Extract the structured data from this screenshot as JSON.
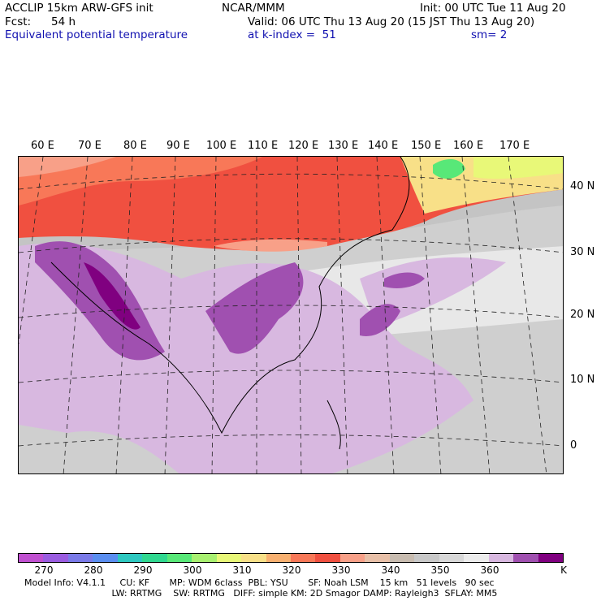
{
  "header": {
    "model": "ACCLIP 15km ARW-GFS init",
    "org": "NCAR/MMM",
    "init": "Init: 00 UTC Tue 11 Aug 20",
    "fcst_label": "Fcst:",
    "fcst_value": "54 h",
    "valid": "Valid: 06 UTC Thu 13 Aug 20 (15 JST Thu 13 Aug 20)",
    "field": "Equivalent potential temperature",
    "level": "at k-index =  51",
    "smooth": "sm= 2"
  },
  "map": {
    "lon_labels": [
      "60 E",
      "70 E",
      "80 E",
      "90 E",
      "100 E",
      "110 E",
      "120 E",
      "130 E",
      "140 E",
      "150 E",
      "160 E",
      "170 E"
    ],
    "lat_labels": [
      "40 N",
      "30 N",
      "20 N",
      "10 N",
      "0"
    ]
  },
  "colorbar": {
    "ticks": [
      "270",
      "280",
      "290",
      "300",
      "310",
      "320",
      "330",
      "340",
      "350",
      "360"
    ],
    "unit": "K",
    "colors": [
      "#c050d0",
      "#9a5ce0",
      "#7a7ae8",
      "#5a8ef0",
      "#2ec8c0",
      "#30d890",
      "#58e878",
      "#a8f070",
      "#e8f878",
      "#f8e088",
      "#f8b070",
      "#f87858",
      "#f05040",
      "#f8a088",
      "#e8c0a8",
      "#c8bcb0",
      "#c8c8c8",
      "#d8d8d8",
      "#ececec",
      "#d8b8e0",
      "#a050b0",
      "#800080"
    ]
  },
  "footer": {
    "line1": "Model Info: V4.1.1     CU: KF       MP: WDM 6class  PBL: YSU       SF: Noah LSM    15 km   51 levels   90 sec",
    "line2": "     LW: RRTMG    SW: RRTMG   DIFF: simple KM: 2D Smagor DAMP: Rayleigh3  SFLAY: MM5"
  }
}
